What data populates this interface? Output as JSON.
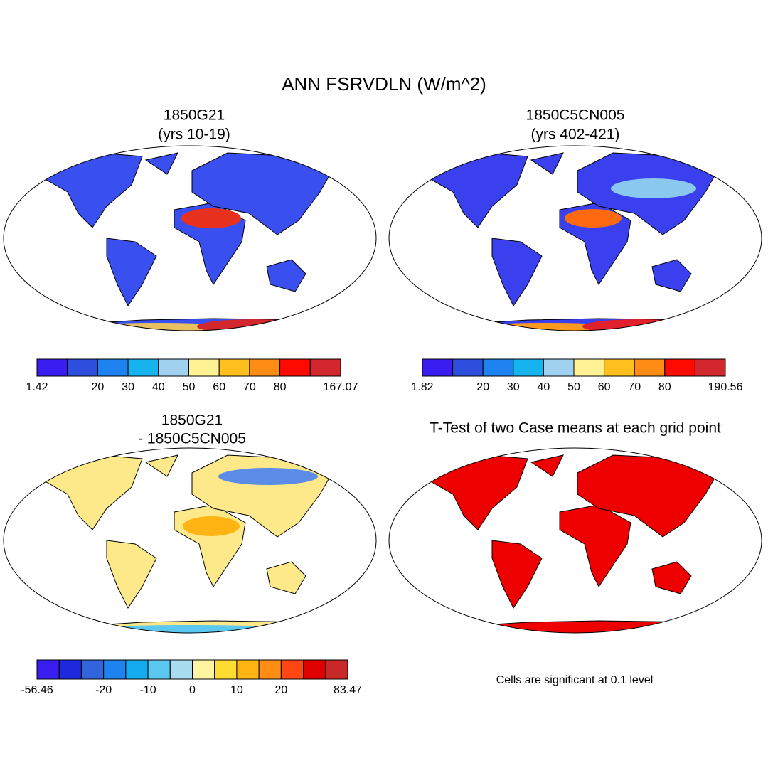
{
  "title": "ANN FSRVDLN (W/m^2)",
  "panels": [
    {
      "title": "1850G21",
      "subtitle": "(yrs 10-19)",
      "colorbar": {
        "colors": [
          "#3a1ef0",
          "#2e4fde",
          "#1e82f0",
          "#15b4ee",
          "#a0d2f0",
          "#fff294",
          "#ffc01e",
          "#ff8c14",
          "#ff0a00",
          "#d2282d"
        ],
        "labels": [
          1.42,
          null,
          20,
          30,
          40,
          50,
          60,
          70,
          80,
          null,
          167.07
        ]
      }
    },
    {
      "title": "1850C5CN005",
      "subtitle": "(yrs 402-421)",
      "colorbar": {
        "colors": [
          "#3a1ef0",
          "#2e4fde",
          "#1e82f0",
          "#15b4ee",
          "#a0d2f0",
          "#fff294",
          "#ffc01e",
          "#ff8c14",
          "#ff0a00",
          "#d2282d"
        ],
        "labels": [
          1.82,
          null,
          20,
          30,
          40,
          50,
          60,
          70,
          80,
          null,
          190.56
        ]
      }
    },
    {
      "title": "1850G21",
      "subtitle": "- 1850C5CN005",
      "colorbar": {
        "colors": [
          "#3a1ef0",
          "#1e28dc",
          "#3264dc",
          "#1e82f0",
          "#14aaf0",
          "#5ac8f0",
          "#aadcf0",
          "#fff5a0",
          "#ffdc32",
          "#ffb414",
          "#ff8c14",
          "#ff4614",
          "#e10000",
          "#c82828"
        ],
        "labels": [
          -56.46,
          null,
          null,
          -20,
          null,
          -10,
          null,
          0,
          null,
          10,
          null,
          20,
          null,
          null,
          83.47
        ]
      }
    },
    {
      "title": "T-Test of two Case means at each grid point",
      "note": "Cells are significant at 0.1 level"
    }
  ]
}
